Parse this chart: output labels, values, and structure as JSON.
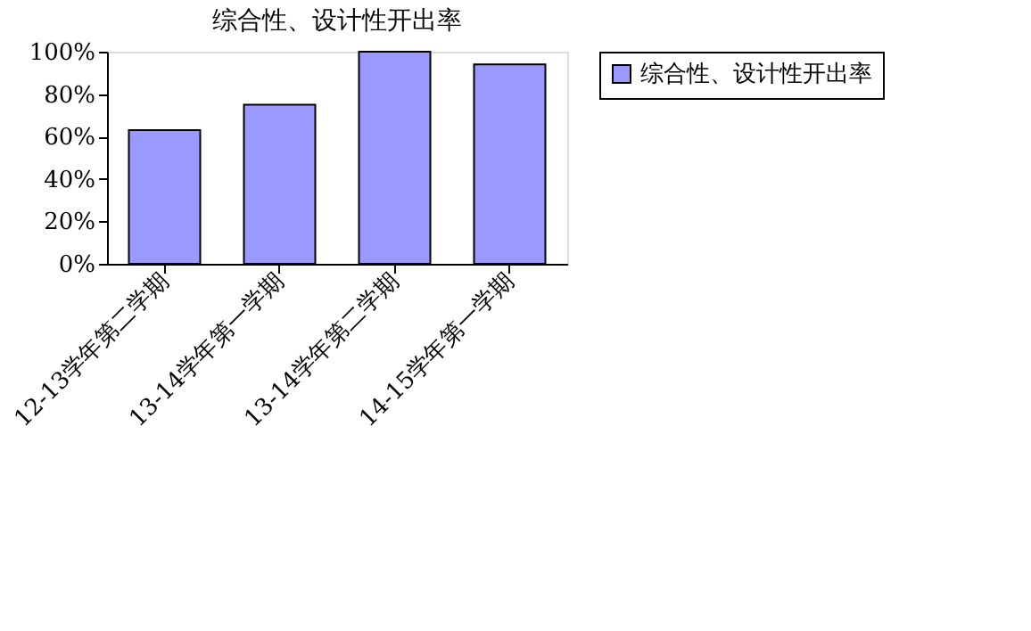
{
  "chart_data": {
    "type": "bar",
    "title": "综合性、设计性开出率",
    "categories": [
      "12-13学年第二学期",
      "13-14学年第一学期",
      "13-14学年第二学期",
      "14-15学年第一学期"
    ],
    "series": [
      {
        "name": "综合性、设计性开出率",
        "color": "#9999ff",
        "values": [
          63,
          75,
          100,
          94
        ]
      }
    ],
    "ylim": [
      0,
      100
    ],
    "yticks": [
      {
        "value": 0,
        "label": "0%"
      },
      {
        "value": 20,
        "label": "20%"
      },
      {
        "value": 40,
        "label": "40%"
      },
      {
        "value": 60,
        "label": "60%"
      },
      {
        "value": 80,
        "label": "80%"
      },
      {
        "value": 100,
        "label": "100%"
      }
    ],
    "grid": false,
    "legend": "right"
  }
}
